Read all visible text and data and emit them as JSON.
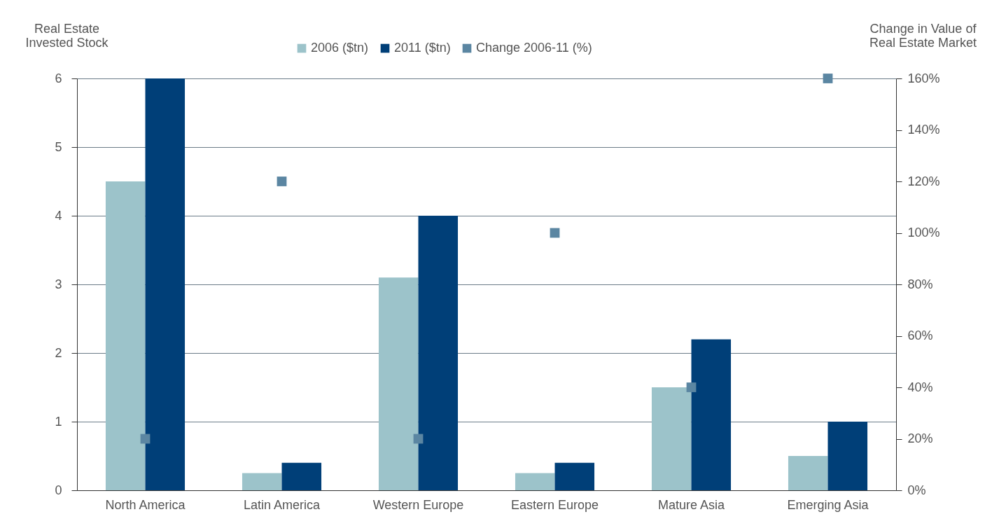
{
  "chart_data": {
    "type": "bar",
    "ylabel": "Real Estate\nInvested Stock",
    "y2label": "Change in Value of\nReal Estate Market",
    "categories": [
      "North America",
      "Latin America",
      "Western Europe",
      "Eastern Europe",
      "Mature Asia",
      "Emerging Asia"
    ],
    "series": [
      {
        "name": "2006 ($tn)",
        "color": "#9cc3ca",
        "values": [
          4.5,
          0.25,
          3.1,
          0.25,
          1.5,
          0.5
        ]
      },
      {
        "name": "2011 ($tn)",
        "color": "#003f78",
        "values": [
          6,
          0.4,
          4.0,
          0.4,
          2.2,
          1.0
        ]
      },
      {
        "name": "Change 2006-11 (%)",
        "type": "scatter",
        "axis": "y2",
        "color": "#5b86a2",
        "values": [
          20,
          120,
          20,
          100,
          40,
          160
        ]
      }
    ],
    "ylim": [
      0,
      6
    ],
    "yticks": [
      0,
      1,
      2,
      3,
      4,
      5,
      6
    ],
    "y2lim": [
      0,
      160
    ],
    "y2ticks": [
      {
        "value": 0,
        "label": "0%"
      },
      {
        "value": 20,
        "label": "20%"
      },
      {
        "value": 40,
        "label": "40%"
      },
      {
        "value": 60,
        "label": "60%"
      },
      {
        "value": 80,
        "label": "80%"
      },
      {
        "value": 100,
        "label": "100%"
      },
      {
        "value": 120,
        "label": "120%"
      },
      {
        "value": 140,
        "label": "140%"
      },
      {
        "value": 160,
        "label": "160%"
      }
    ],
    "grid": "y",
    "legend": "top",
    "marker": "square"
  }
}
